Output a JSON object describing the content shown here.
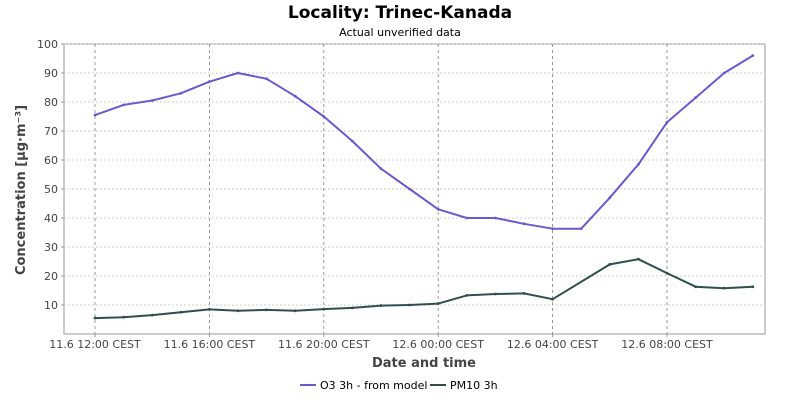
{
  "chart_data": {
    "type": "line",
    "title": "Locality: Trinec-Kanada",
    "subtitle": "Actual unverified data",
    "xlabel": "Date and time",
    "ylabel": "Concentration [µg·m⁻³]",
    "ylim": [
      0,
      100
    ],
    "yticks": [
      10,
      20,
      30,
      40,
      50,
      60,
      70,
      80,
      90,
      100
    ],
    "xticks": [
      {
        "pos": 0,
        "label": "11.6 12:00 CEST"
      },
      {
        "pos": 4,
        "label": "11.6 16:00 CEST"
      },
      {
        "pos": 8,
        "label": "11.6 20:00 CEST"
      },
      {
        "pos": 12,
        "label": "12.6 00:00 CEST"
      },
      {
        "pos": 16,
        "label": "12.6 04:00 CEST"
      },
      {
        "pos": 20,
        "label": "12.6 08:00 CEST"
      }
    ],
    "x_hours_from_start": [
      0,
      1,
      2,
      3,
      4,
      5,
      6,
      7,
      8,
      9,
      10,
      11,
      12,
      13,
      14,
      15,
      16,
      17,
      18,
      19,
      20,
      21,
      22,
      23
    ],
    "grid": true,
    "legend_position": "bottom",
    "series": [
      {
        "name": "O3 3h - from model",
        "color": "#6a5acd",
        "values": [
          75.5,
          79,
          80.5,
          83,
          87,
          90,
          88,
          82,
          75,
          66.5,
          57,
          50,
          43,
          40,
          40,
          38,
          36.3,
          36.3,
          47,
          58.5,
          73,
          81.5,
          90,
          96
        ]
      },
      {
        "name": "PM10 3h",
        "color": "#2f4f4f",
        "values": [
          5.5,
          5.8,
          6.5,
          7.5,
          8.5,
          8,
          8.3,
          8,
          8.6,
          9,
          9.8,
          10,
          10.5,
          13.3,
          13.8,
          14,
          12,
          null,
          24,
          25.8,
          21,
          16.3,
          15.8,
          16.3
        ]
      }
    ]
  }
}
